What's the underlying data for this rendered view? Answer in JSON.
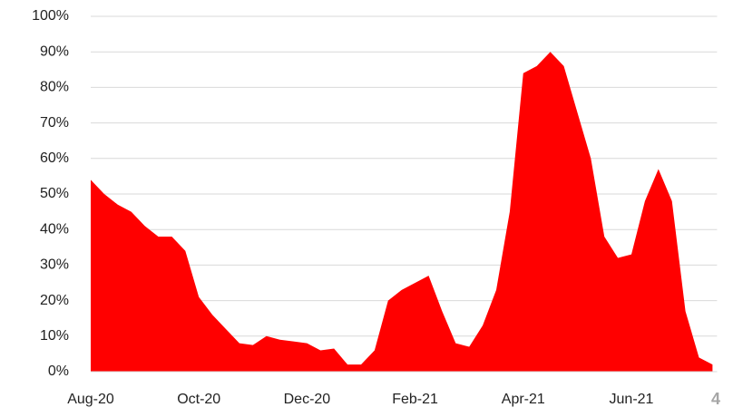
{
  "chart_data": {
    "type": "area",
    "categories": [
      "Aug-20",
      null,
      null,
      null,
      null,
      null,
      null,
      null,
      "Oct-20",
      null,
      null,
      null,
      null,
      null,
      null,
      null,
      "Dec-20",
      null,
      null,
      null,
      null,
      null,
      null,
      null,
      "Feb-21",
      null,
      null,
      null,
      null,
      null,
      null,
      null,
      "Apr-21",
      null,
      null,
      null,
      null,
      null,
      null,
      null,
      "Jun-21",
      null,
      null,
      null,
      null,
      null,
      null
    ],
    "values": [
      54,
      50,
      47,
      45,
      41,
      38,
      38,
      34,
      21,
      16,
      12,
      8,
      7.5,
      10,
      9,
      8.5,
      8,
      6,
      6.5,
      2,
      2,
      6,
      20,
      23,
      25,
      27,
      17,
      8,
      7,
      13,
      23,
      45,
      84,
      86,
      90,
      86,
      73,
      60,
      38,
      32,
      33,
      48,
      57,
      48,
      17,
      4,
      2
    ],
    "color": "#ff0000",
    "ylim": [
      0,
      100
    ],
    "yticks": [
      {
        "value": 0,
        "label": "0%"
      },
      {
        "value": 10,
        "label": "10%"
      },
      {
        "value": 20,
        "label": "20%"
      },
      {
        "value": 30,
        "label": "30%"
      },
      {
        "value": 40,
        "label": "40%"
      },
      {
        "value": 50,
        "label": "50%"
      },
      {
        "value": 60,
        "label": "60%"
      },
      {
        "value": 70,
        "label": "70%"
      },
      {
        "value": 80,
        "label": "80%"
      },
      {
        "value": 90,
        "label": "90%"
      },
      {
        "value": 100,
        "label": "100%"
      }
    ],
    "grid": true,
    "annotation": "4"
  }
}
